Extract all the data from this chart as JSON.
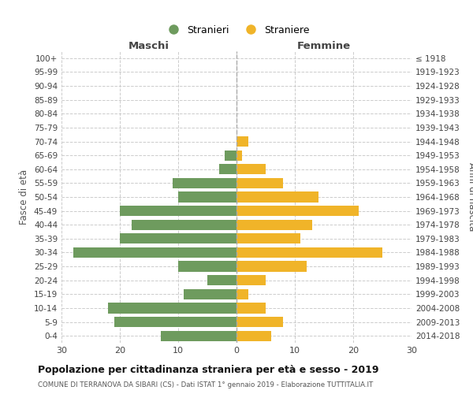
{
  "age_groups": [
    "100+",
    "95-99",
    "90-94",
    "85-89",
    "80-84",
    "75-79",
    "70-74",
    "65-69",
    "60-64",
    "55-59",
    "50-54",
    "45-49",
    "40-44",
    "35-39",
    "30-34",
    "25-29",
    "20-24",
    "15-19",
    "10-14",
    "5-9",
    "0-4"
  ],
  "birth_years": [
    "≤ 1918",
    "1919-1923",
    "1924-1928",
    "1929-1933",
    "1934-1938",
    "1939-1943",
    "1944-1948",
    "1949-1953",
    "1954-1958",
    "1959-1963",
    "1964-1968",
    "1969-1973",
    "1974-1978",
    "1979-1983",
    "1984-1988",
    "1989-1993",
    "1994-1998",
    "1999-2003",
    "2004-2008",
    "2009-2013",
    "2014-2018"
  ],
  "maschi": [
    0,
    0,
    0,
    0,
    0,
    0,
    0,
    2,
    3,
    11,
    10,
    20,
    18,
    20,
    28,
    10,
    5,
    9,
    22,
    21,
    13
  ],
  "femmine": [
    0,
    0,
    0,
    0,
    0,
    0,
    2,
    1,
    5,
    8,
    14,
    21,
    13,
    11,
    25,
    12,
    5,
    2,
    5,
    8,
    6
  ],
  "color_maschi": "#6e9b5e",
  "color_femmine": "#f0b429",
  "title": "Popolazione per cittadinanza straniera per età e sesso - 2019",
  "subtitle": "COMUNE DI TERRANOVA DA SIBARI (CS) - Dati ISTAT 1° gennaio 2019 - Elaborazione TUTTITALIA.IT",
  "xlabel_left": "Maschi",
  "xlabel_right": "Femmine",
  "ylabel_left": "Fasce di età",
  "ylabel_right": "Anni di nascita",
  "legend_maschi": "Stranieri",
  "legend_femmine": "Straniere",
  "xlim": 30,
  "background_color": "#ffffff",
  "grid_color": "#cccccc",
  "grid_linestyle": "--"
}
